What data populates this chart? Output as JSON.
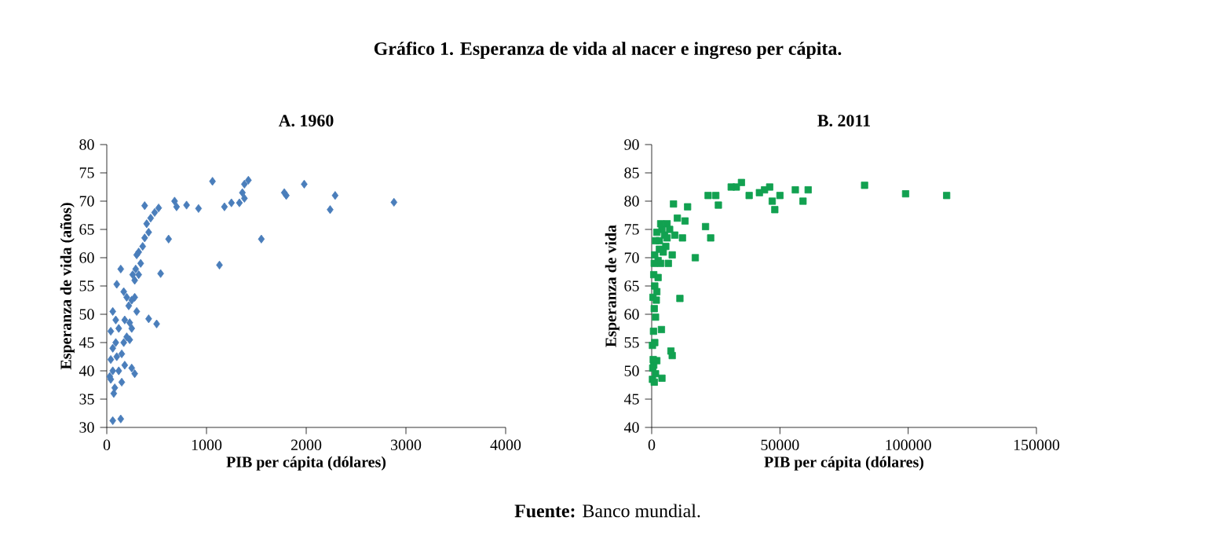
{
  "chart_data": [
    {
      "type": "scatter",
      "title": "A. 1960",
      "xlabel": "PIB per cápita (dólares)",
      "ylabel": "Esperanza de vida (años)",
      "color": "#4a7ebb",
      "marker": "diamond",
      "annotations": [
        "Gráfico 1. Esperanza de vida al nacer e ingreso per cápita.",
        "**Fuente:** Banco mundial."
      ],
      "xlim": [
        0,
        4000
      ],
      "ylim": [
        30,
        80
      ],
      "xticks": [
        0,
        1000,
        2000,
        3000,
        4000
      ],
      "yticks": [
        30,
        35,
        40,
        45,
        50,
        55,
        60,
        65,
        70,
        75,
        80
      ],
      "x": [
        1060,
        1420,
        1380,
        1360,
        1380,
        1330,
        1250,
        1180,
        920,
        800,
        700,
        680,
        1800,
        1780,
        1980,
        2290,
        2240,
        2880,
        1550,
        1130,
        620,
        540,
        500,
        420,
        380,
        520,
        480,
        440,
        400,
        420,
        380,
        360,
        320,
        300,
        340,
        290,
        320,
        260,
        280,
        140,
        100,
        170,
        200,
        250,
        280,
        220,
        60,
        180,
        230,
        250,
        120,
        40,
        200,
        230,
        90,
        60,
        150,
        100,
        40,
        180,
        60,
        120,
        280,
        250,
        40,
        150,
        80,
        70,
        30,
        60,
        140,
        300,
        170,
        90
      ],
      "values": [
        73.5,
        73.7,
        73,
        71.5,
        70.5,
        69.7,
        69.7,
        69,
        68.7,
        69.3,
        69,
        70,
        71,
        71.5,
        73,
        71,
        68.5,
        69.8,
        63.3,
        58.7,
        63.3,
        57.2,
        48.3,
        49.2,
        69.2,
        68.8,
        68,
        67,
        66,
        64.5,
        63.5,
        62,
        61,
        60.5,
        59,
        58,
        57,
        57,
        56,
        58,
        55.3,
        54,
        53,
        52.5,
        53,
        51.5,
        50.5,
        49,
        48.5,
        47.5,
        47.5,
        47,
        46,
        45.5,
        45,
        44,
        43,
        42.5,
        42,
        41,
        40,
        40,
        39.5,
        40.5,
        38.5,
        38,
        37,
        36,
        39,
        31.2,
        31.5,
        50.5,
        45,
        49
      ]
    },
    {
      "type": "scatter",
      "title": "B. 2011",
      "xlabel": "PIB per cápita (dólares)",
      "ylabel": "Esperanza de vida",
      "color": "#12a150",
      "marker": "square",
      "xlim": [
        0,
        150000
      ],
      "ylim": [
        40,
        90
      ],
      "xticks": [
        0,
        50000,
        100000,
        150000
      ],
      "yticks": [
        40,
        45,
        50,
        55,
        60,
        65,
        70,
        75,
        80,
        85,
        90
      ],
      "x": [
        115000,
        99000,
        83000,
        61000,
        59000,
        56000,
        50000,
        48000,
        47000,
        46000,
        44000,
        42000,
        38000,
        35000,
        33000,
        31000,
        26000,
        25000,
        22000,
        21000,
        23000,
        17000,
        14000,
        13000,
        12000,
        10000,
        8500,
        9000,
        8000,
        11000,
        8000,
        7500,
        6000,
        5000,
        4000,
        3000,
        2000,
        1500,
        4500,
        3500,
        6500,
        2500,
        1000,
        800,
        2500,
        1200,
        500,
        1800,
        1000,
        1500,
        700,
        3800,
        300,
        1200,
        800,
        400,
        2000,
        300,
        1000,
        4000,
        1500,
        600,
        2000,
        3500,
        7000,
        5500,
        3000,
        6000,
        1200
      ],
      "values": [
        81,
        81.3,
        82.8,
        82,
        80,
        82,
        81,
        78.5,
        80,
        82.5,
        82,
        81.5,
        81,
        83.3,
        82.5,
        82.5,
        79.3,
        81,
        81,
        75.5,
        73.5,
        70,
        79,
        76.5,
        73.5,
        77,
        79.5,
        74,
        70.5,
        62.8,
        52.7,
        53.5,
        76,
        74,
        75,
        73,
        74.5,
        73,
        71,
        69,
        69,
        69.5,
        69,
        67,
        66.5,
        65,
        63,
        62.5,
        61,
        59.5,
        57,
        57.3,
        54.5,
        55,
        51,
        50.5,
        51.8,
        48.5,
        48,
        48.7,
        49.5,
        52,
        64,
        76,
        75,
        72,
        71.5,
        73.5,
        70.5
      ]
    }
  ]
}
